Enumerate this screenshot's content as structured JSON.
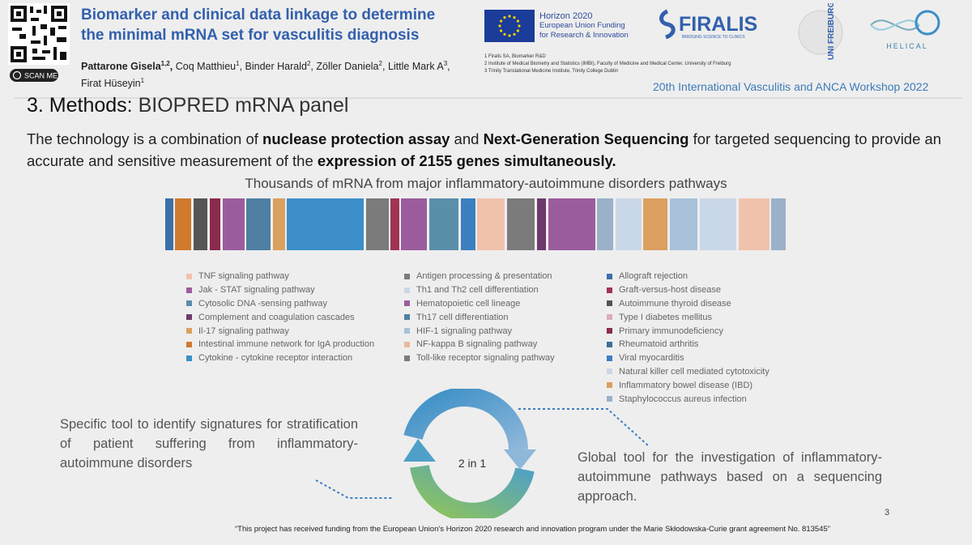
{
  "header": {
    "scan_label": "SCAN ME",
    "title_lines": [
      "Biomarker and clinical data linkage to determine",
      "the minimal mRNA set for vasculitis diagnosis"
    ],
    "authors": [
      {
        "name": "Pattarone Gisela",
        "sup": "1,2",
        "sep": ","
      },
      {
        "name": "Coq Matthieu",
        "sup": "1",
        "sep": ","
      },
      {
        "name": "Binder Harald",
        "sup": "2",
        "sep": ","
      },
      {
        "name": "Zöller Daniela",
        "sup": "2",
        "sep": ","
      },
      {
        "name": "Little Mark A",
        "sup": "3",
        "sep": ","
      },
      {
        "name": "Firat Hüseyin",
        "sup": "1"
      }
    ],
    "eu_lines": [
      "Horizon 2020",
      "European Union Funding",
      "for Research & Innovation"
    ],
    "affiliations": [
      "1 Firalis SA, Biomarker R&D",
      "2 Institute of Medical Biometry and Statistics (IMBI), Faculty of Medicine and Medical Center, University of Freiburg",
      "3 Trinity Translational Medicine Institute, Trinity College Dublin"
    ],
    "firalis": "FIRALIS",
    "firalis_tagline": "BRIDGING SCIENCE TO CLINICS",
    "freiburg": "UNI FREIBURG",
    "helical": "HELICAL",
    "workshop": "20th International Vasculitis and ANCA Workshop 2022"
  },
  "section": {
    "number": "3. Methods:",
    "title": "BIOPRED mRNA panel"
  },
  "intro": {
    "segments": [
      {
        "text": "The technology is a combination of ",
        "bold": false
      },
      {
        "text": "nuclease protection assay",
        "bold": true
      },
      {
        "text": " and ",
        "bold": false
      },
      {
        "text": "Next-Generation Sequencing",
        "bold": true
      },
      {
        "text": " for targeted sequencing to provide an accurate and sensitive measurement of the ",
        "bold": false
      },
      {
        "text": "expression of 2155 genes simultaneously.",
        "bold": true
      }
    ]
  },
  "panel_title": "Thousands of mRNA from major inflammatory-autoimmune disorders pathways",
  "legend": [
    [
      {
        "label": "TNF signaling pathway",
        "color": "#f0c2ac"
      },
      {
        "label": "Jak - STAT signaling pathway",
        "color": "#9b5c9e"
      },
      {
        "label": "Cytosolic DNA -sensing pathway",
        "color": "#5a8faa"
      },
      {
        "label": "Complement and coagulation cascades",
        "color": "#6e3a6e"
      },
      {
        "label": "Il-17 signaling pathway",
        "color": "#dba060"
      },
      {
        "label": "Intestinal immune network for IgA production",
        "color": "#d07a2e"
      },
      {
        "label": "Cytokine - cytokine receptor interaction",
        "color": "#3c8fc8"
      }
    ],
    [
      {
        "label": "Antigen processing & presentation",
        "color": "#7b7b7b"
      },
      {
        "label": "Th1 and Th2 cell differentiation",
        "color": "#c9d8e8"
      },
      {
        "label": "Hematopoietic cell lineage",
        "color": "#9b5c9e"
      },
      {
        "label": "Th17 cell differentiation",
        "color": "#4f7fa2"
      },
      {
        "label": "HIF-1 signaling pathway",
        "color": "#a9c1d9"
      },
      {
        "label": "NF-kappa B signaling pathway",
        "color": "#e9b99a"
      },
      {
        "label": "Toll-like receptor signaling pathway",
        "color": "#7b7b7b"
      }
    ],
    [
      {
        "label": "Allograft rejection",
        "color": "#3b6fa8"
      },
      {
        "label": "Graft-versus-host disease",
        "color": "#a13352"
      },
      {
        "label": "Autoimmune thyroid disease",
        "color": "#555555"
      },
      {
        "label": "Type I diabetes mellitus",
        "color": "#dcaabb"
      },
      {
        "label": "Primary immunodeficiency",
        "color": "#8a2a4c"
      },
      {
        "label": "Rheumatoid arthritis",
        "color": "#3b6f98"
      },
      {
        "label": "Viral myocarditis",
        "color": "#3b7fc0"
      },
      {
        "label": "Natural killer cell mediated cytotoxicity",
        "color": "#c9d8e8"
      },
      {
        "label": "Inflammatory bowel disease (IBD)",
        "color": "#dba060"
      },
      {
        "label": "Staphylococcus aureus infection",
        "color": "#9ab1c9"
      }
    ]
  ],
  "left_text": "Specific tool to identify signatures for stratification of patient suffering from inflammatory-autoimmune disorders",
  "cycle_label": "2 in 1",
  "right_text": "Global tool for the investigation of inflammatory-autoimmune pathways based on a sequencing approach.",
  "page_number": "3",
  "footer": "“This project has received funding from the European Union’s Horizon 2020 research and innovation program under the Marie Skłodowska-Curie grant agreement No. 813545”"
}
